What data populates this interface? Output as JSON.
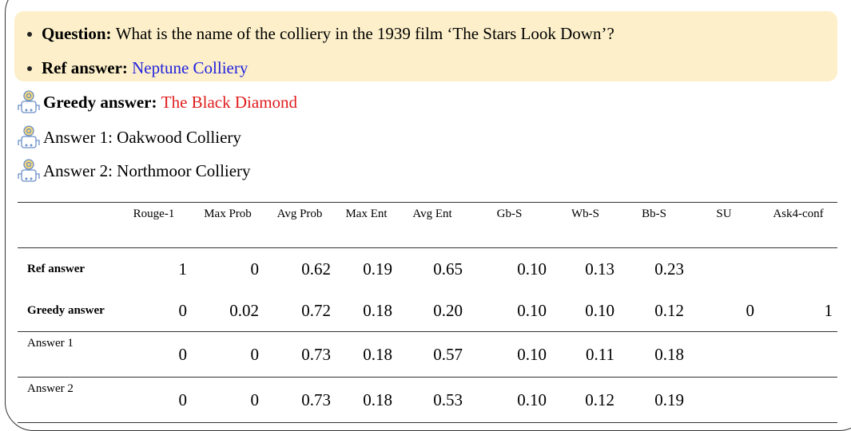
{
  "question": {
    "label": "Question:",
    "text": "What is the name of the colliery in the 1939 film ‘The Stars Look Down’?"
  },
  "ref_answer": {
    "label": "Ref answer:",
    "text": "Neptune Colliery"
  },
  "greedy_answer": {
    "label": "Greedy answer:",
    "text": "The Black Diamond"
  },
  "answers": [
    "Answer 1: Oakwood Colliery",
    "Answer 2: Northmoor Colliery"
  ],
  "table": {
    "header": [
      "Rouge-1",
      "Max Prob",
      "Avg Prob",
      "Max Ent",
      "Avg Ent",
      "Gb-S",
      "Wb-S",
      "Bb-S",
      "SU",
      "Ask4-conf"
    ],
    "rows": [
      {
        "label": "Ref answer",
        "bold": true,
        "cells": [
          "1",
          "0",
          "0.62",
          "0.19",
          "0.65",
          "0.10",
          "0.13",
          "0.23"
        ]
      },
      {
        "label": "Greedy answer",
        "bold": true,
        "cells": [
          "0",
          "0.02",
          "0.72",
          "0.18",
          "0.20",
          "0.10",
          "0.10",
          "0.12",
          "0",
          "1"
        ]
      },
      {
        "label": "Answer 1",
        "bold": false,
        "cells": [
          "0",
          "0",
          "0.73",
          "0.18",
          "0.57",
          "0.10",
          "0.11",
          "0.18"
        ]
      },
      {
        "label": "Answer 2",
        "bold": false,
        "cells": [
          "0",
          "0",
          "0.73",
          "0.18",
          "0.53",
          "0.10",
          "0.12",
          "0.19"
        ]
      }
    ]
  }
}
